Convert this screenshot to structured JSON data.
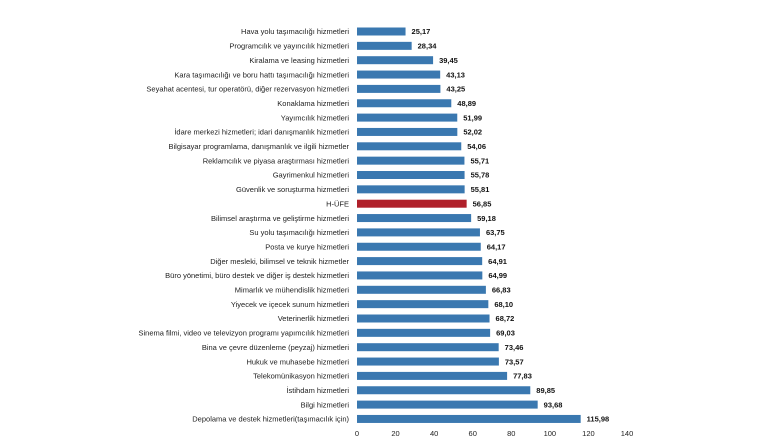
{
  "chart_data": {
    "type": "bar",
    "orientation": "horizontal",
    "categories": [
      "Hava yolu taşımacılığı hizmetleri",
      "Programcılık ve yayıncılık hizmetleri",
      "Kiralama ve leasing hizmetleri",
      "Kara taşımacılığı ve boru hattı taşımacılığı hizmetleri",
      "Seyahat acentesi, tur operatörü, diğer rezervasyon hizmetleri",
      "Konaklama hizmetleri",
      "Yayımcılık hizmetleri",
      "İdare merkezi hizmetleri; idari danışmanlık hizmetleri",
      "Bilgisayar programlama, danışmanlık ve ilgili hizmetler",
      "Reklamcılık ve piyasa araştırması hizmetleri",
      "Gayrimenkul hizmetleri",
      "Güvenlik ve soruşturma hizmetleri",
      "H-ÜFE",
      "Bilimsel araştırma ve geliştirme hizmetleri",
      "Su yolu taşımacılığı hizmetleri",
      "Posta ve kurye hizmetleri",
      "Diğer mesleki, bilimsel ve teknik hizmetler",
      "Büro yönetimi, büro destek ve diğer iş destek hizmetleri",
      "Mimarlık ve mühendislik hizmetleri",
      "Yiyecek ve içecek sunum hizmetleri",
      "Veterinerlik hizmetleri",
      "Sinema filmi, video ve televizyon programı yapımcılık hizmetleri",
      "Bina ve çevre düzenleme (peyzaj) hizmetleri",
      "Hukuk ve muhasebe hizmetleri",
      "Telekomünikasyon hizmetleri",
      "İstihdam hizmetleri",
      "Bilgi hizmetleri",
      "Depolama ve destek hizmetleri(taşımacılık için)"
    ],
    "values": [
      25.17,
      28.34,
      39.45,
      43.13,
      43.25,
      48.89,
      51.99,
      52.02,
      54.06,
      55.71,
      55.78,
      55.81,
      56.85,
      59.18,
      63.75,
      64.17,
      64.91,
      64.99,
      66.83,
      68.1,
      68.72,
      69.03,
      73.46,
      73.57,
      77.83,
      89.85,
      93.68,
      115.98
    ],
    "value_labels": [
      "25,17",
      "28,34",
      "39,45",
      "43,13",
      "43,25",
      "48,89",
      "51,99",
      "52,02",
      "54,06",
      "55,71",
      "55,78",
      "55,81",
      "56,85",
      "59,18",
      "63,75",
      "64,17",
      "64,91",
      "64,99",
      "66,83",
      "68,10",
      "68,72",
      "69,03",
      "73,46",
      "73,57",
      "77,83",
      "89,85",
      "93,68",
      "115,98"
    ],
    "highlight_category": "H-ÜFE",
    "xlim": [
      0,
      140
    ],
    "xticks": [
      0,
      20,
      40,
      60,
      80,
      100,
      120,
      140
    ],
    "colors": {
      "bar": "#3a78b0",
      "highlight": "#b0202a"
    },
    "grid": false,
    "legend": "none",
    "title": "",
    "xlabel": "",
    "ylabel": ""
  }
}
